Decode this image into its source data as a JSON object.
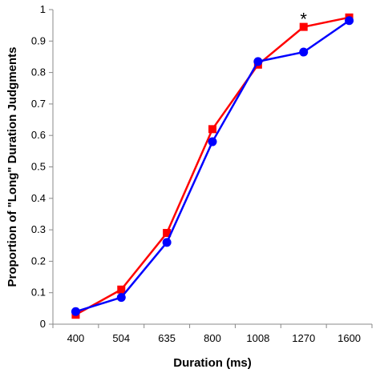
{
  "chart_data": {
    "type": "line",
    "categories": [
      "400",
      "504",
      "635",
      "800",
      "1008",
      "1270",
      "1600"
    ],
    "series": [
      {
        "color": "#ff0000",
        "marker": "square",
        "values": [
          0.03,
          0.11,
          0.29,
          0.62,
          0.825,
          0.945,
          0.975
        ]
      },
      {
        "color": "#0000ff",
        "marker": "circle",
        "values": [
          0.04,
          0.085,
          0.26,
          0.58,
          0.835,
          0.865,
          0.965
        ]
      }
    ],
    "xlabel": "Duration (ms)",
    "ylabel": "Proportion of \"Long\" Duration Judgments",
    "ylim": [
      0,
      1
    ],
    "yticks": [
      "0",
      "0.1",
      "0.2",
      "0.3",
      "0.4",
      "0.5",
      "0.6",
      "0.7",
      "0.8",
      "0.9",
      "1"
    ],
    "grid": false,
    "annotations": [
      {
        "text": "*",
        "category": "1270"
      }
    ]
  }
}
